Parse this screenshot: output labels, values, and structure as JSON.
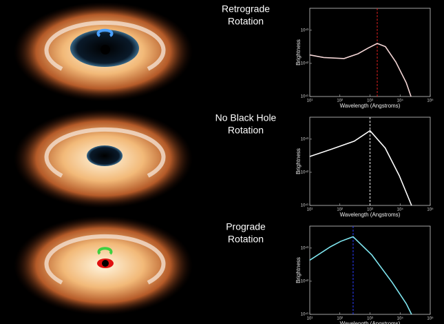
{
  "chart_data": [
    {
      "type": "line",
      "title": [
        "Retrograde",
        "Rotation"
      ],
      "xlabel": "Wavelength (Angstroms)",
      "ylabel": "Brightness",
      "xscale": "log",
      "yscale": "log",
      "xlim": [
        10,
        100000
      ],
      "ylim": [
        1e+41,
        4.6e+43
      ],
      "xticks": [
        {
          "value": 10,
          "label": "10¹"
        },
        {
          "value": 100,
          "label": "10²"
        },
        {
          "value": 1000,
          "label": "10³"
        },
        {
          "value": 10000,
          "label": "10⁴"
        },
        {
          "value": 100000,
          "label": "10⁵"
        }
      ],
      "yticks": [
        {
          "value": 1e+41,
          "label": "10⁴¹"
        },
        {
          "value": 1e+42,
          "label": "10⁴²"
        },
        {
          "value": 1e+43,
          "label": "10⁴³"
        }
      ],
      "x": [
        10,
        29,
        138,
        400,
        870,
        1740,
        3250,
        7200,
        16000,
        23000
      ],
      "series": [
        {
          "color": "#f4d6d6",
          "values": [
            1.8e+42,
            1.5e+42,
            1.4e+42,
            1.95e+42,
            2.9e+42,
            4e+42,
            3.2e+42,
            1.1e+42,
            2.6e+41,
            1e+41
          ]
        }
      ],
      "vline": {
        "value": 1740,
        "color": "#e02020"
      }
    },
    {
      "type": "line",
      "title": [
        "No Black Hole",
        "Rotation"
      ],
      "xlabel": "Wavelength (Angstroms)",
      "ylabel": "Brightness",
      "xscale": "log",
      "yscale": "log",
      "xlim": [
        10,
        100000
      ],
      "ylim": [
        1e+41,
        4.6e+43
      ],
      "xticks": [
        {
          "value": 10,
          "label": "10¹"
        },
        {
          "value": 100,
          "label": "10²"
        },
        {
          "value": 1000,
          "label": "10³"
        },
        {
          "value": 10000,
          "label": "10⁴"
        },
        {
          "value": 100000,
          "label": "10⁵"
        }
      ],
      "yticks": [
        {
          "value": 1e+41,
          "label": "10⁴¹"
        },
        {
          "value": 1e+42,
          "label": "10⁴²"
        },
        {
          "value": 1e+43,
          "label": "10⁴³"
        }
      ],
      "x": [
        10,
        50,
        300,
        1000,
        3200,
        9400,
        24000
      ],
      "series": [
        {
          "color": "#ffffff",
          "values": [
            3e+42,
            4.9e+42,
            8.7e+42,
            1.8e+43,
            5.4e+42,
            7.9e+41,
            1e+41
          ]
        }
      ],
      "vline": {
        "value": 1000,
        "color": "#ffffff"
      }
    },
    {
      "type": "line",
      "title": [
        "Prograde",
        "Rotation"
      ],
      "xlabel": "Wavelength (Angstroms)",
      "ylabel": "Brightness",
      "xscale": "log",
      "yscale": "log",
      "xlim": [
        10,
        100000
      ],
      "ylim": [
        1e+41,
        4.6e+43
      ],
      "xticks": [
        {
          "value": 10,
          "label": "10¹"
        },
        {
          "value": 100,
          "label": "10²"
        },
        {
          "value": 1000,
          "label": "10³"
        },
        {
          "value": 10000,
          "label": "10⁴"
        },
        {
          "value": 100000,
          "label": "10⁵"
        }
      ],
      "yticks": [
        {
          "value": 1e+41,
          "label": "10⁴¹"
        },
        {
          "value": 1e+42,
          "label": "10⁴²"
        },
        {
          "value": 1e+43,
          "label": "10⁴³"
        }
      ],
      "x": [
        10,
        49,
        107,
        275,
        1150,
        5500,
        16000,
        24000
      ],
      "series": [
        {
          "color": "#7fe6f0",
          "values": [
            4.3e+42,
            1.1e+43,
            1.6e+43,
            2.2e+43,
            6.2e+42,
            9.1e+41,
            2.1e+41,
            1e+41
          ]
        }
      ],
      "vline": {
        "value": 275,
        "color": "#2a3cff"
      }
    }
  ]
}
